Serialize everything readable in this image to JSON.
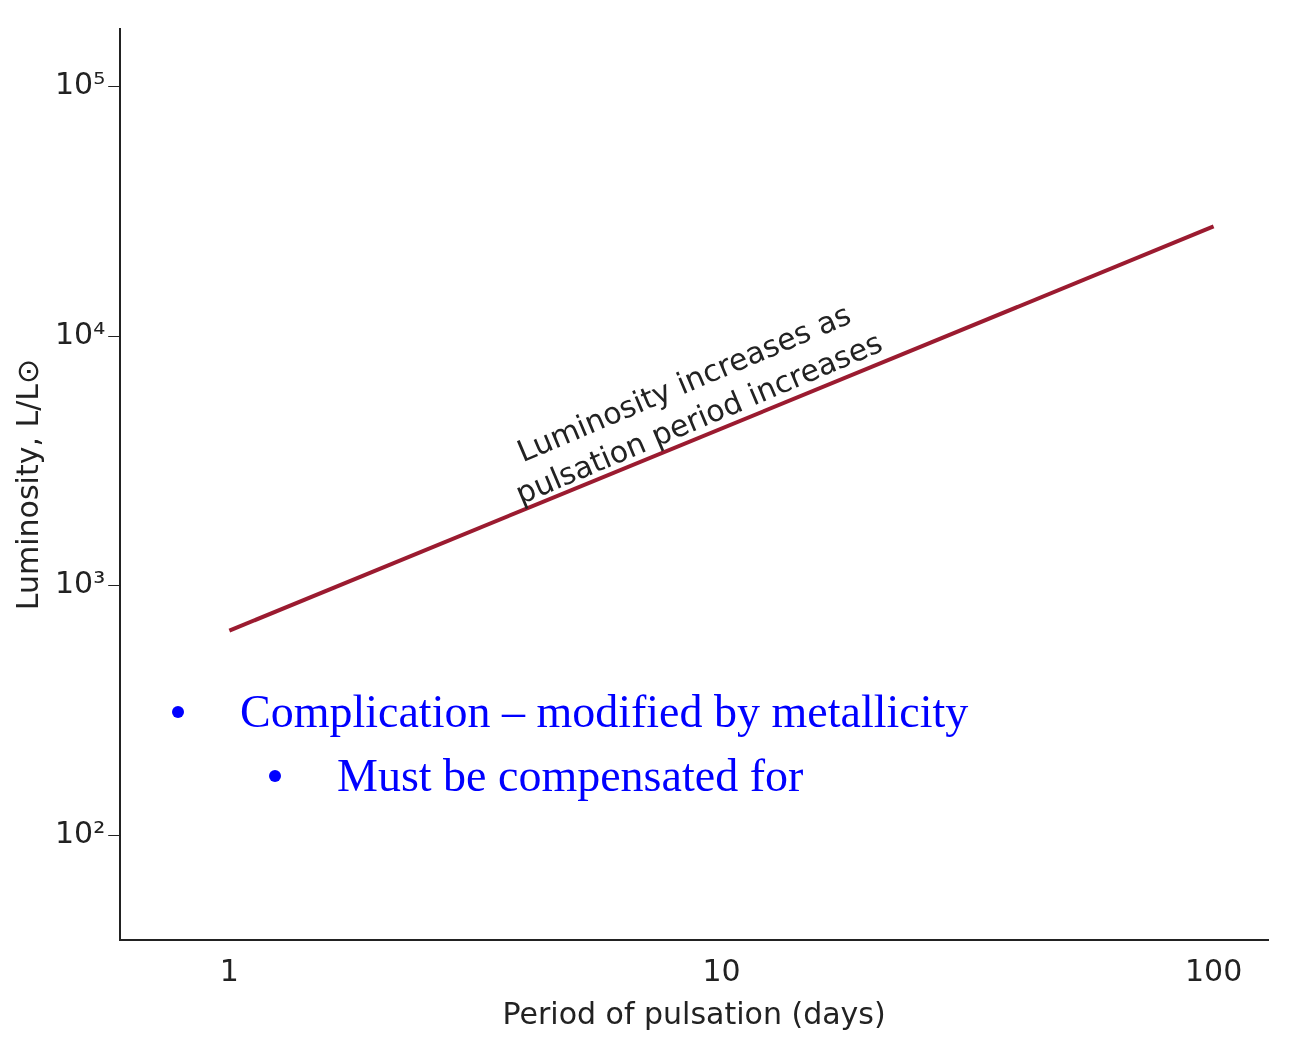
{
  "chart_data": {
    "type": "line",
    "xlabel": "Period of pulsation (days)",
    "ylabel": "Luminosity, L/L⊙",
    "x": [
      1,
      100
    ],
    "series": [
      {
        "color": "#9b1b30",
        "values": [
          660,
          27500
        ]
      }
    ],
    "log": "xy",
    "xlim": [
      0.6,
      129
    ],
    "ylim": [
      38,
      170000
    ],
    "xticks": [
      1,
      10,
      100
    ],
    "yticks": [
      {
        "value": 100,
        "label": "10²"
      },
      {
        "value": 1000,
        "label": "10³"
      },
      {
        "value": 10000,
        "label": "10⁴"
      },
      {
        "value": 100000,
        "label": "10⁵"
      }
    ],
    "grid": false,
    "legend": false,
    "annotations": [
      "Luminosity increases as pulsation period increases",
      "Complication – modified by metallicity",
      "Must be compensated for"
    ]
  }
}
